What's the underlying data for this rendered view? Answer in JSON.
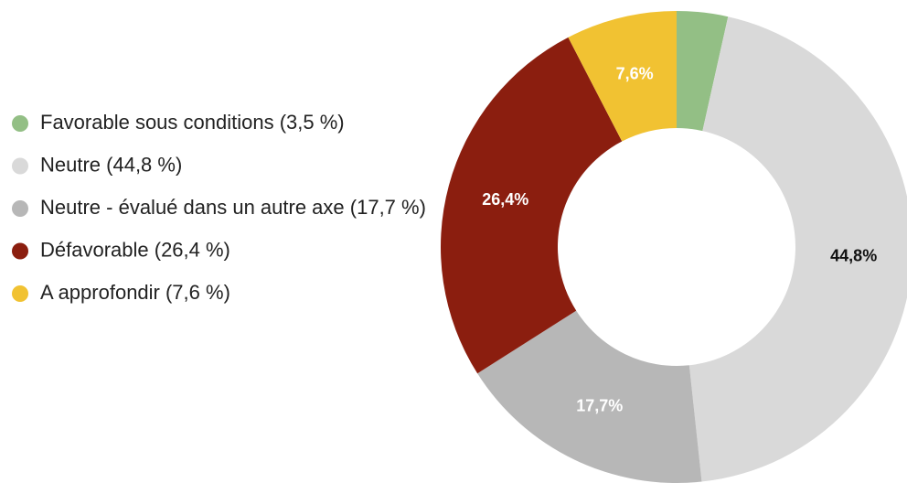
{
  "chart_data": {
    "type": "donut",
    "labels": [
      "Favorable sous conditions (3,5 %)",
      "Neutre (44,8 %)",
      "Neutre - évalué dans un autre axe (17,7 %)",
      "Défavorable (26,4 %)",
      "A approfondir (7,6 %)"
    ],
    "values": [
      3.5,
      44.8,
      17.7,
      26.4,
      7.6
    ],
    "value_labels": [
      null,
      "44,8%",
      "17,7%",
      "26,4%",
      "7,6%"
    ],
    "colors": [
      "#93bf85",
      "#d9d9d9",
      "#b7b7b7",
      "#8b1e0f",
      "#f1c232"
    ],
    "legend": "left"
  }
}
